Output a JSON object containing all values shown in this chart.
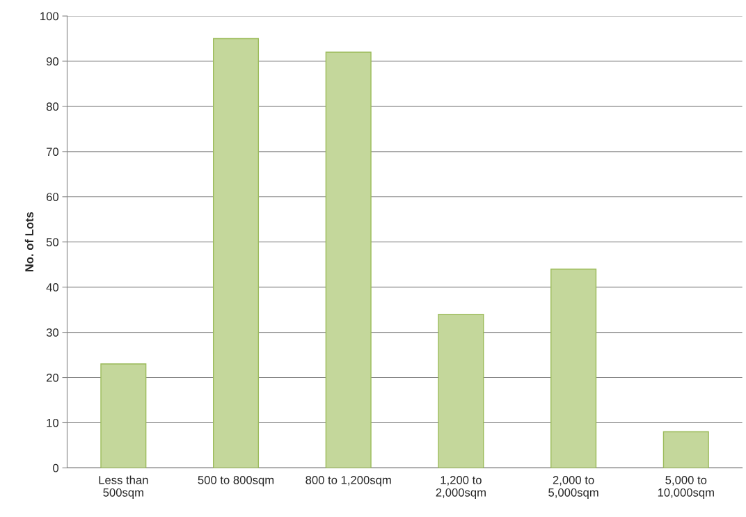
{
  "chart_data": {
    "type": "bar",
    "ylabel": "No. of Lots",
    "categories": [
      "Less than\n500sqm",
      "500 to 800sqm",
      "800 to 1,200sqm",
      "1,200 to\n2,000sqm",
      "2,000 to\n5,000sqm",
      "5,000 to\n10,000sqm"
    ],
    "values": [
      23,
      95,
      92,
      34,
      44,
      8
    ],
    "color": "#c4d79b",
    "ylim": [
      0,
      100
    ],
    "yticks": [
      0,
      10,
      20,
      30,
      40,
      50,
      60,
      70,
      80,
      90,
      100
    ],
    "grid": "y"
  }
}
